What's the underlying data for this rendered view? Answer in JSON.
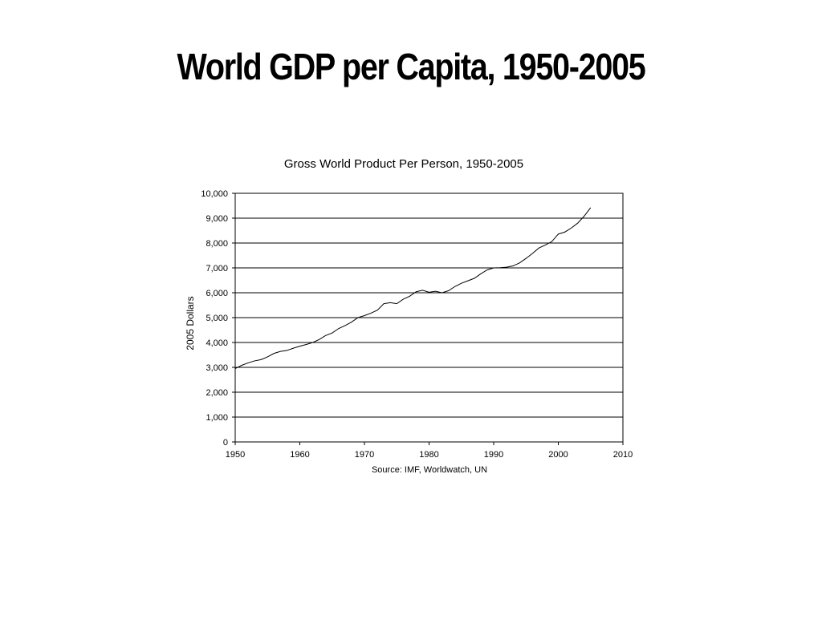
{
  "slide": {
    "title": "World GDP per Capita, 1950-2005"
  },
  "chart_data": {
    "type": "line",
    "title": "Gross World Product Per Person, 1950-2005",
    "xlabel": "",
    "ylabel": "2005 Dollars",
    "source": "Source: IMF, Worldwatch, UN",
    "xlim": [
      1950,
      2010
    ],
    "ylim": [
      0,
      10000
    ],
    "x_ticks": [
      1950,
      1960,
      1970,
      1980,
      1990,
      2000,
      2010
    ],
    "x_tick_labels": [
      "1950",
      "1960",
      "1970",
      "1980",
      "1990",
      "2000",
      "2010"
    ],
    "y_ticks": [
      0,
      1000,
      2000,
      3000,
      4000,
      5000,
      6000,
      7000,
      8000,
      9000,
      10000
    ],
    "y_tick_labels": [
      "0",
      "1,000",
      "2,000",
      "3,000",
      "4,000",
      "5,000",
      "6,000",
      "7,000",
      "8,000",
      "9,000",
      "10,000"
    ],
    "grid": "horizontal",
    "line_color": "#000000",
    "series": [
      {
        "x": [
          1950,
          1951,
          1952,
          1953,
          1954,
          1955,
          1956,
          1957,
          1958,
          1959,
          1960,
          1961,
          1962,
          1963,
          1964,
          1965,
          1966,
          1967,
          1968,
          1969,
          1970,
          1971,
          1972,
          1973,
          1974,
          1975,
          1976,
          1977,
          1978,
          1979,
          1980,
          1981,
          1982,
          1983,
          1984,
          1985,
          1986,
          1987,
          1988,
          1989,
          1990,
          1991,
          1992,
          1993,
          1994,
          1995,
          1996,
          1997,
          1998,
          1999,
          2000,
          2001,
          2002,
          2003,
          2004,
          2005
        ],
        "values": [
          2950,
          3080,
          3180,
          3260,
          3310,
          3420,
          3560,
          3640,
          3680,
          3770,
          3850,
          3920,
          4000,
          4120,
          4280,
          4380,
          4560,
          4680,
          4820,
          5000,
          5080,
          5180,
          5300,
          5560,
          5600,
          5560,
          5740,
          5860,
          6040,
          6100,
          6020,
          6060,
          6000,
          6080,
          6250,
          6380,
          6480,
          6580,
          6760,
          6920,
          7000,
          7010,
          7030,
          7080,
          7200,
          7380,
          7580,
          7800,
          7920,
          8060,
          8360,
          8440,
          8600,
          8800,
          9080,
          9420
        ]
      }
    ]
  }
}
